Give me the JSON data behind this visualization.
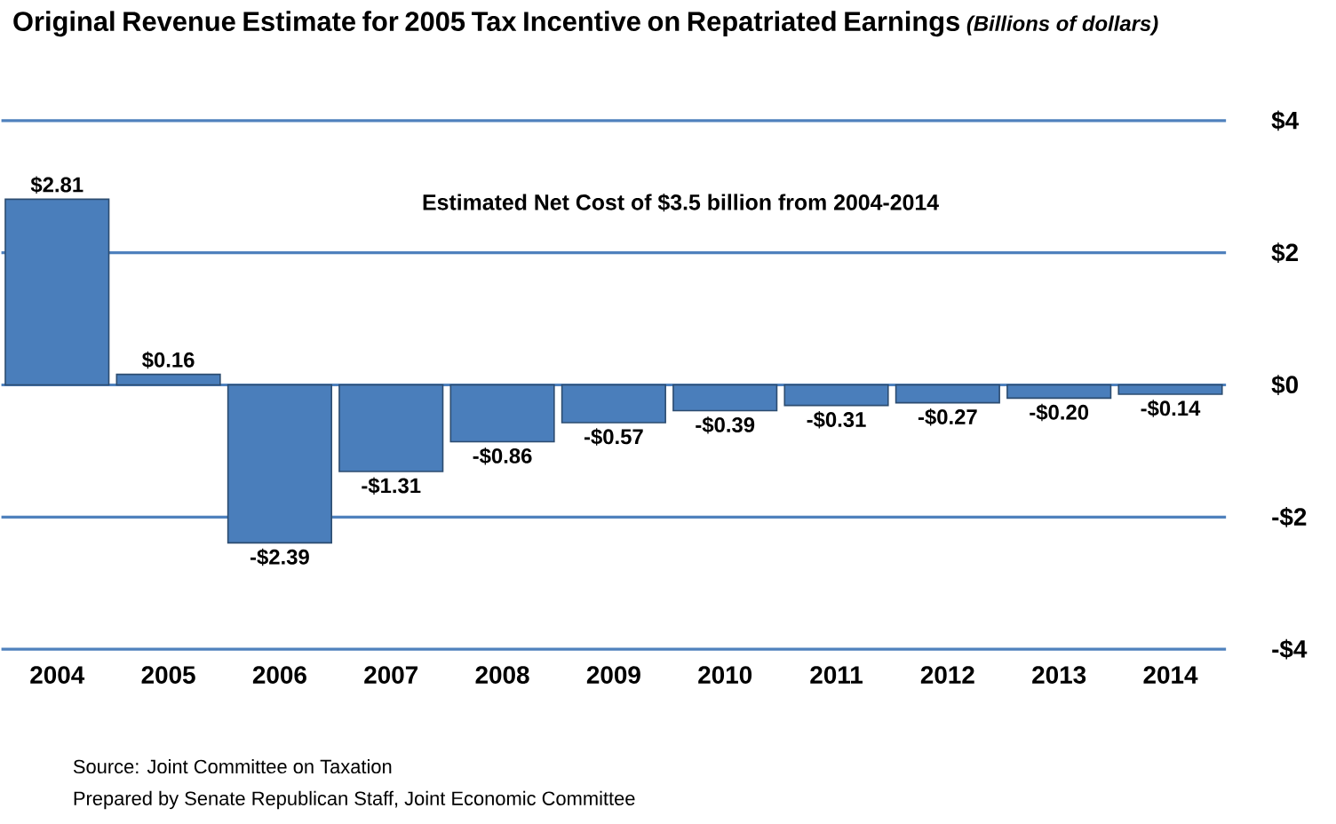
{
  "chart_data": {
    "type": "bar",
    "title": "Original Revenue Estimate for 2005 Tax Incentive on Repatriated Earnings",
    "subtitle": "(Billions of dollars)",
    "categories": [
      "2004",
      "2005",
      "2006",
      "2007",
      "2008",
      "2009",
      "2010",
      "2011",
      "2012",
      "2013",
      "2014"
    ],
    "values": [
      2.81,
      0.16,
      -2.39,
      -1.31,
      -0.86,
      -0.57,
      -0.39,
      -0.31,
      -0.27,
      -0.2,
      -0.14
    ],
    "value_labels": [
      "$2.81",
      "$0.16",
      "-$2.39",
      "-$1.31",
      "-$0.86",
      "-$0.57",
      "-$0.39",
      "-$0.31",
      "-$0.27",
      "-$0.20",
      "-$0.14"
    ],
    "color": "#4a7ebb",
    "ylim": [
      -4,
      4
    ],
    "yticks": [
      {
        "value": 4,
        "label": "$4"
      },
      {
        "value": 2,
        "label": "$2"
      },
      {
        "value": 0,
        "label": "$0"
      },
      {
        "value": -2,
        "label": "-$2"
      },
      {
        "value": -4,
        "label": "-$4"
      }
    ],
    "grid": "y",
    "annotations": [
      "Estimated Net Cost of $3.5 billion from 2004-2014",
      "Source: Joint Committee on Taxation",
      "Prepared by Senate Republican Staff, Joint Economic Committee"
    ]
  }
}
